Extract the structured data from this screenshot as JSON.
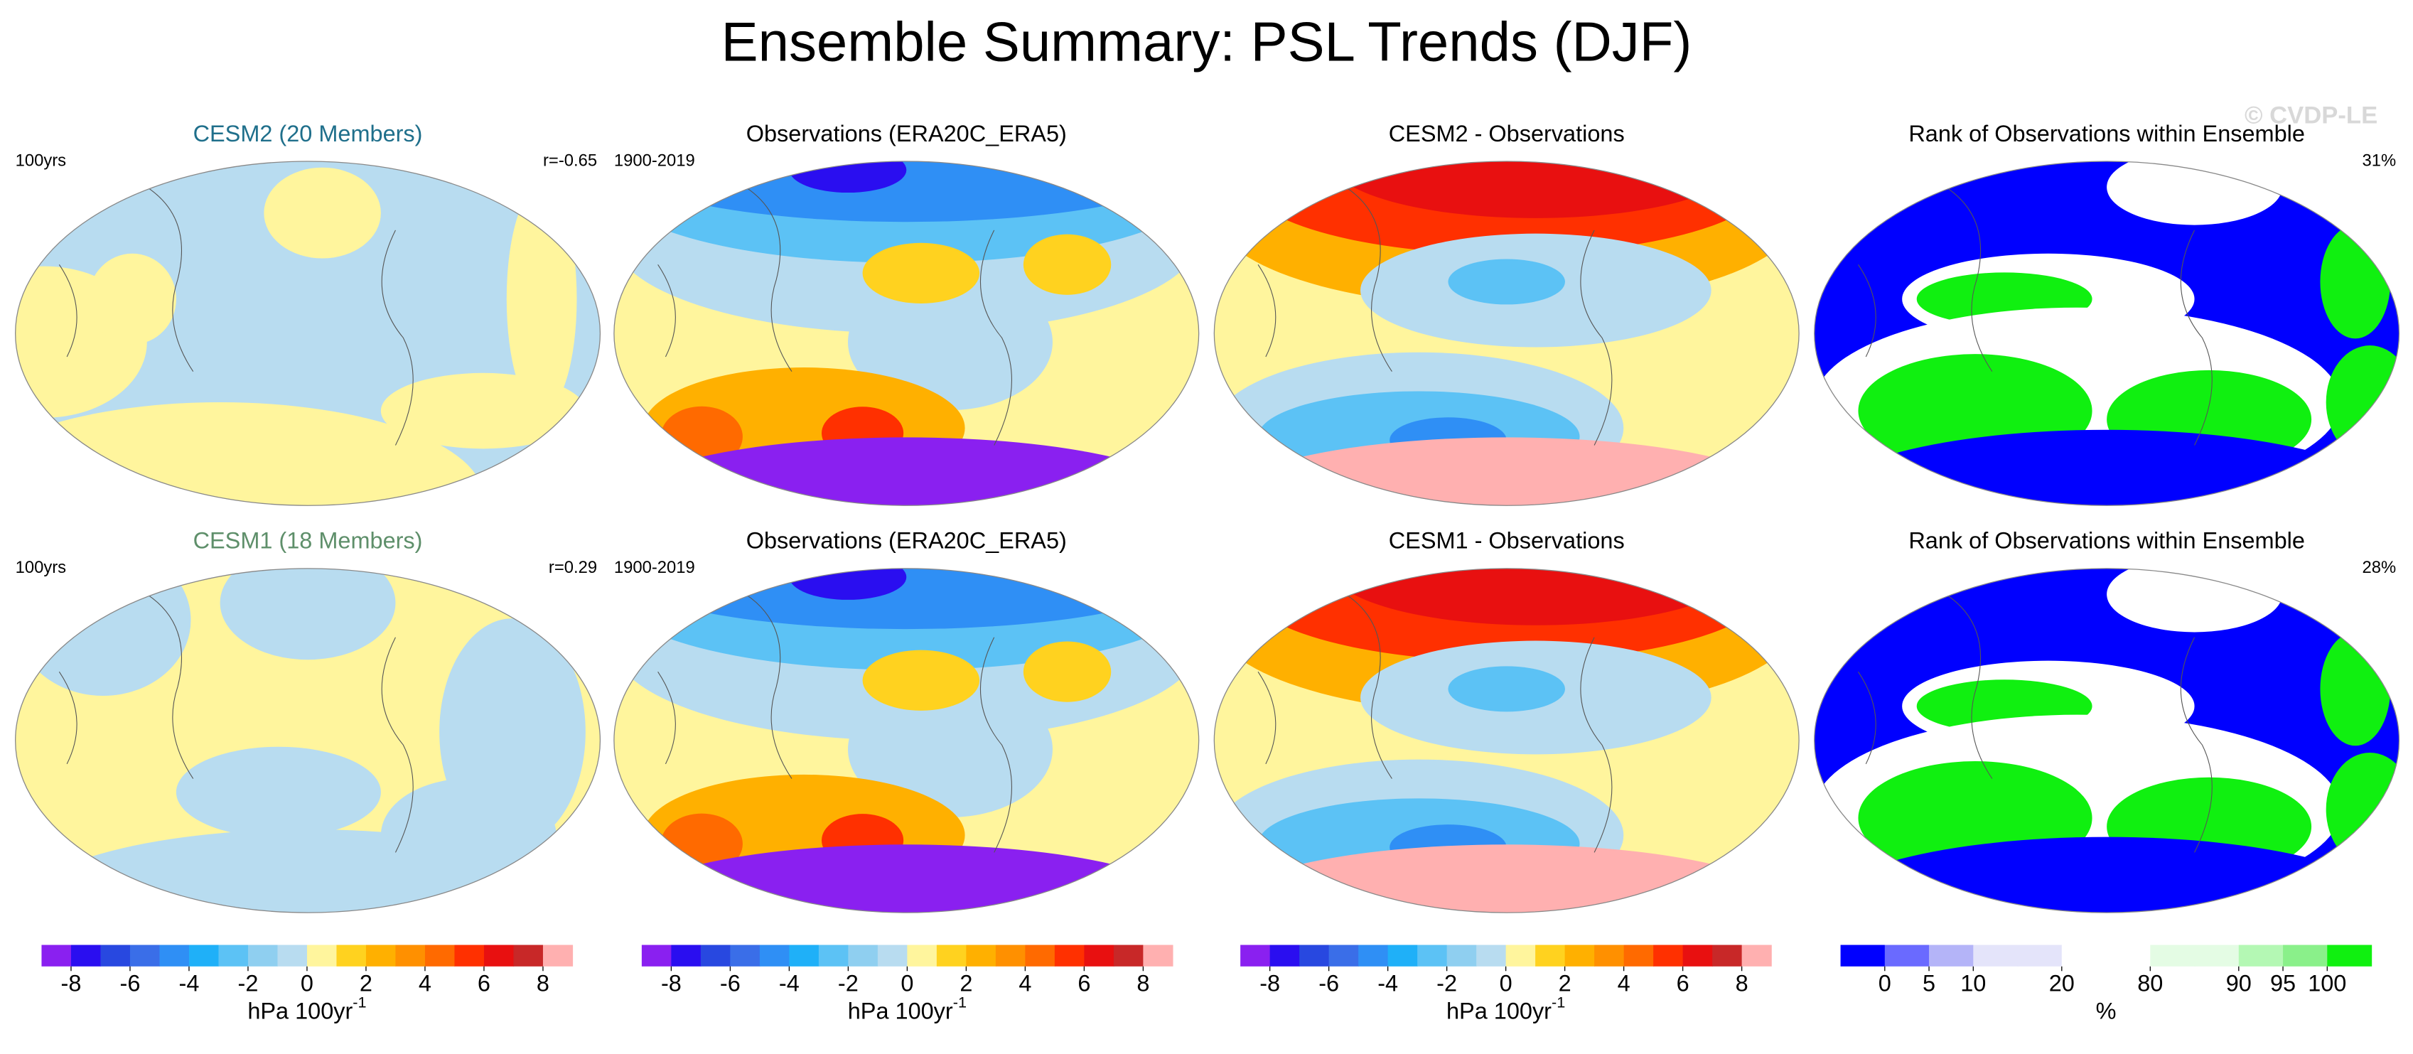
{
  "header": {
    "title": "Ensemble Summary: PSL Trends (DJF)",
    "watermark": "© CVDP-LE"
  },
  "panels": [
    {
      "title": "CESM2 (20 Members)",
      "title_color": "#1f6f8b",
      "left_label": "100yrs",
      "right_label": "r=-0.65"
    },
    {
      "title": "Observations (ERA20C_ERA5)",
      "title_color": "#000000",
      "left_label": "1900-2019"
    },
    {
      "title": "CESM2 - Observations",
      "title_color": "#000000"
    },
    {
      "title": "Rank of Observations within Ensemble",
      "title_color": "#000000",
      "right_label": "31%"
    },
    {
      "title": "CESM1 (18 Members)",
      "title_color": "#5e8f6a",
      "left_label": "100yrs",
      "right_label": "r=0.29"
    },
    {
      "title": "Observations (ERA20C_ERA5)",
      "title_color": "#000000",
      "left_label": "1900-2019"
    },
    {
      "title": "CESM1 - Observations",
      "title_color": "#000000"
    },
    {
      "title": "Rank of Observations within Ensemble",
      "title_color": "#000000",
      "right_label": "28%"
    }
  ],
  "colorbars": [
    {
      "lim": [
        -9,
        9
      ],
      "ticks": [
        -8,
        -6,
        -4,
        -2,
        0,
        2,
        4,
        6,
        8
      ],
      "unit": "hPa 100yr",
      "unit_exponent": "-1",
      "colors": [
        "#8a20f0",
        "#2a0ef0",
        "#2848e0",
        "#3a6ee8",
        "#2f8ff5",
        "#1fb0f8",
        "#5cc2f5",
        "#8fcff0",
        "#b8dcf0",
        "#fff59d",
        "#ffd21f",
        "#ffb000",
        "#ff9000",
        "#ff6a00",
        "#ff3000",
        "#e81010",
        "#c82828",
        "#ffb0b0"
      ]
    },
    {
      "lim": [
        -9,
        9
      ],
      "ticks": [
        -8,
        -6,
        -4,
        -2,
        0,
        2,
        4,
        6,
        8
      ],
      "unit": "hPa 100yr",
      "unit_exponent": "-1",
      "colors": [
        "#8a20f0",
        "#2a0ef0",
        "#2848e0",
        "#3a6ee8",
        "#2f8ff5",
        "#1fb0f8",
        "#5cc2f5",
        "#8fcff0",
        "#b8dcf0",
        "#fff59d",
        "#ffd21f",
        "#ffb000",
        "#ff9000",
        "#ff6a00",
        "#ff3000",
        "#e81010",
        "#c82828",
        "#ffb0b0"
      ]
    },
    {
      "lim": [
        -9,
        9
      ],
      "ticks": [
        -8,
        -6,
        -4,
        -2,
        0,
        2,
        4,
        6,
        8
      ],
      "unit": "hPa 100yr",
      "unit_exponent": "-1",
      "colors": [
        "#8a20f0",
        "#2a0ef0",
        "#2848e0",
        "#3a6ee8",
        "#2f8ff5",
        "#1fb0f8",
        "#5cc2f5",
        "#8fcff0",
        "#b8dcf0",
        "#fff59d",
        "#ffd21f",
        "#ffb000",
        "#ff9000",
        "#ff6a00",
        "#ff3000",
        "#e81010",
        "#c82828",
        "#ffb0b0"
      ]
    },
    {
      "ticks": [
        0,
        5,
        10,
        20,
        80,
        90,
        95,
        100
      ],
      "unit": "%",
      "colors": [
        "#0000ff",
        "#6a6aff",
        "#b4b4f8",
        "#e4e4fa",
        "#e4e4fa",
        "#ffffff",
        "#ffffff",
        "#e4fce4",
        "#e4fce4",
        "#b4f8b4",
        "#8af08a",
        "#10f010"
      ]
    }
  ]
}
